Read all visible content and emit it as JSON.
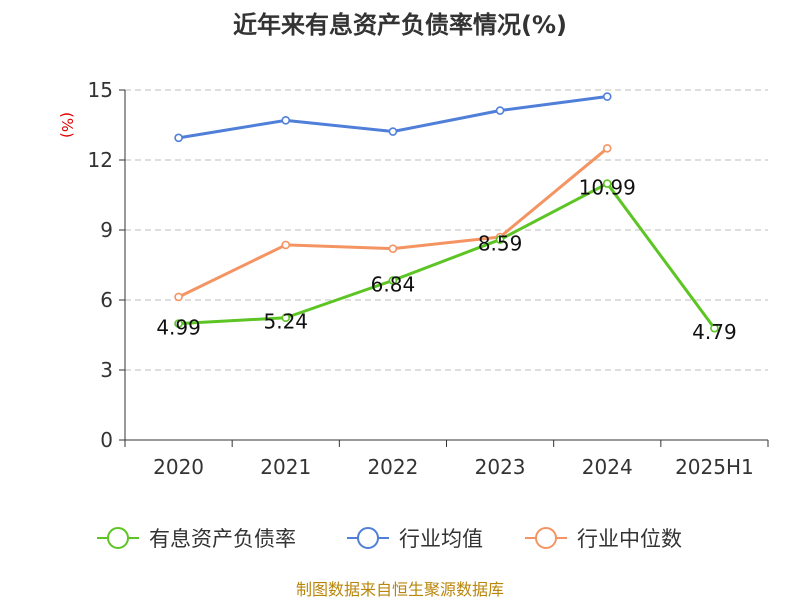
{
  "colors": {
    "series": [
      "#5cc524",
      "#4f7fd8",
      "#f59463"
    ],
    "grid": "#bdbdbd",
    "axis": "#333333",
    "unit": "#e00000",
    "source": "#b8860b"
  },
  "chart_data": {
    "type": "line",
    "title": "近年来有息资产负债率情况(%)",
    "ylabel": "(%)",
    "xlabel": "",
    "categories": [
      "2020",
      "2021",
      "2022",
      "2023",
      "2024",
      "2025H1"
    ],
    "ylim": [
      0,
      15
    ],
    "yticks": [
      0,
      3,
      6,
      9,
      12,
      15
    ],
    "grid": true,
    "legend_position": "bottom",
    "series": [
      {
        "name": "有息资产负债率",
        "values": [
          4.99,
          5.24,
          6.84,
          8.59,
          10.99,
          4.79
        ],
        "labels": [
          "4.99",
          "5.24",
          "6.84",
          "8.59",
          "10.99",
          "4.79"
        ]
      },
      {
        "name": "行业均值",
        "values": [
          12.95,
          13.7,
          13.22,
          14.12,
          14.72,
          null
        ]
      },
      {
        "name": "行业中位数",
        "values": [
          6.13,
          8.36,
          8.2,
          8.7,
          12.5,
          null
        ]
      }
    ]
  },
  "footer": {
    "source": "制图数据来自恒生聚源数据库"
  }
}
